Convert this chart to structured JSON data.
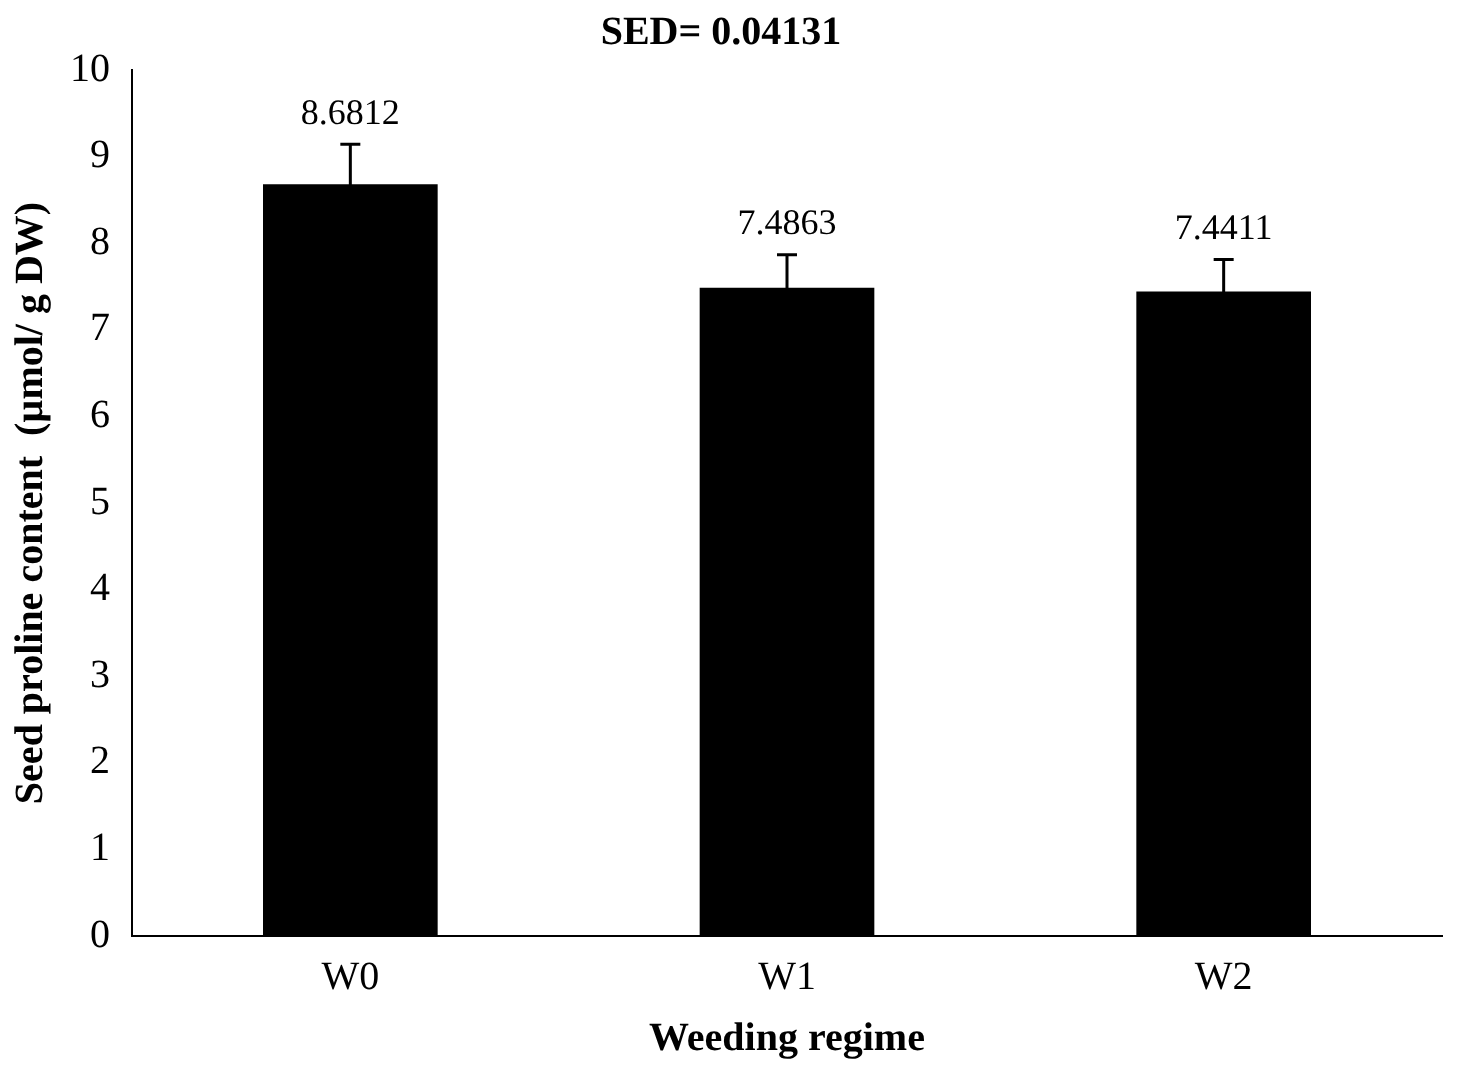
{
  "chart_data": {
    "type": "bar",
    "title": "SED= 0.04131",
    "xlabel": "Weeding regime",
    "ylabel": "Seed proline content  (µmol/ g DW)",
    "categories": [
      "W0",
      "W1",
      "W2"
    ],
    "values": [
      8.6812,
      7.4863,
      7.4411
    ],
    "errors": [
      0.46,
      0.38,
      0.37
    ],
    "color": "#000000",
    "ylim": [
      0,
      10
    ],
    "yticks": [
      0,
      1,
      2,
      3,
      4,
      5,
      6,
      7,
      8,
      9,
      10
    ],
    "grid": false,
    "legend": false,
    "data_labels": true
  }
}
